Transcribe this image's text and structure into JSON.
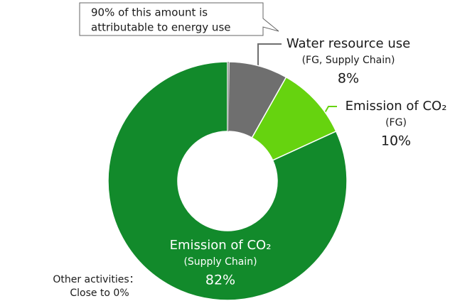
{
  "chart_data": {
    "type": "donut",
    "categories": [
      "Water resource use",
      "Emission of CO₂",
      "Emission of CO₂"
    ],
    "category_notes": [
      "(FG, Supply Chain)",
      "(FG)",
      "(Supply Chain)"
    ],
    "values": [
      8,
      10,
      82
    ],
    "value_labels": [
      "8%",
      "10%",
      "82%"
    ],
    "colors": [
      "#6f6f6f",
      "#66d30f",
      "#128a2b"
    ],
    "callout": [
      "90% of this amount is",
      "attributable to energy use"
    ],
    "annotation": [
      "Other activities：",
      "Close to 0%"
    ]
  }
}
